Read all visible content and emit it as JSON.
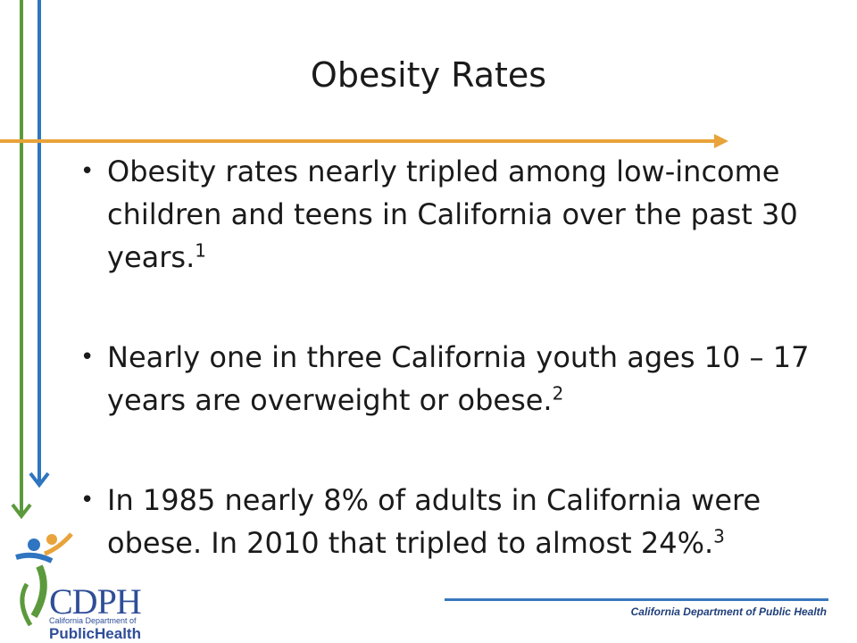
{
  "slide": {
    "title": "Obesity Rates",
    "bullets": [
      {
        "text": "Obesity rates nearly tripled among low-income children and teens in California over the past 30 years.",
        "ref": "1"
      },
      {
        "text": "Nearly one in three California youth ages 10 – 17 years are overweight or obese.",
        "ref": "2"
      },
      {
        "text": "In 1985 nearly 8% of adults in California were obese. In 2010 that tripled to almost 24%.",
        "ref": "3"
      }
    ],
    "bullet_glyph": "•"
  },
  "footer": {
    "text": "California Department of Public Health"
  },
  "logo": {
    "main": "CDPH",
    "sub": "California Department of",
    "public": "Public",
    "health": "Health"
  },
  "colors": {
    "green_arrow": "#5b9a3c",
    "blue_arrow": "#2f75c0",
    "orange_arrow": "#e8a33a",
    "footer_line": "#3878bd",
    "logo_blue": "#2f4e98"
  },
  "icons": {
    "left_arrows": "down-arrow-icon",
    "top_arrow": "right-arrow-icon"
  }
}
